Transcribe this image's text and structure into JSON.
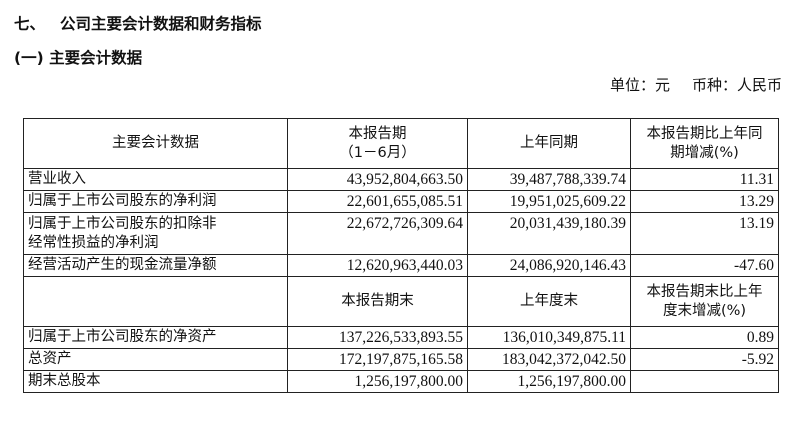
{
  "section": {
    "number": "七、",
    "title": "公司主要会计数据和财务指标",
    "subtitle": "(一) 主要会计数据"
  },
  "unit_line": {
    "unit": "单位：元",
    "currency": "币种：人民币"
  },
  "table": {
    "header1": {
      "col_label": "主要会计数据",
      "col_current_line1": "本报告期",
      "col_current_line2": "（1－6月）",
      "col_prior": "上年同期",
      "col_change_line1": "本报告期比上年同",
      "col_change_line2": "期增减(%)"
    },
    "rows1": [
      {
        "label": "营业收入",
        "current": "43,952,804,663.50",
        "prior": "39,487,788,339.74",
        "change": "11.31"
      },
      {
        "label": "归属于上市公司股东的净利润",
        "current": "22,601,655,085.51",
        "prior": "19,951,025,609.22",
        "change": "13.29"
      },
      {
        "label_line1": "归属于上市公司股东的扣除非",
        "label_line2": "经常性损益的净利润",
        "current": "22,672,726,309.64",
        "prior": "20,031,439,180.39",
        "change": "13.19"
      },
      {
        "label": "经营活动产生的现金流量净额",
        "current": "12,620,963,440.03",
        "prior": "24,086,920,146.43",
        "change": "-47.60"
      }
    ],
    "header2": {
      "col_current": "本报告期末",
      "col_prior": "上年度末",
      "col_change_line1": "本报告期末比上年",
      "col_change_line2": "度末增减(%)"
    },
    "rows2": [
      {
        "label": "归属于上市公司股东的净资产",
        "current": "137,226,533,893.55",
        "prior": "136,010,349,875.11",
        "change": "0.89"
      },
      {
        "label": "总资产",
        "current": "172,197,875,165.58",
        "prior": "183,042,372,042.50",
        "change": "-5.92"
      },
      {
        "label": "期末总股本",
        "current": "1,256,197,800.00",
        "prior": "1,256,197,800.00",
        "change": ""
      }
    ]
  }
}
